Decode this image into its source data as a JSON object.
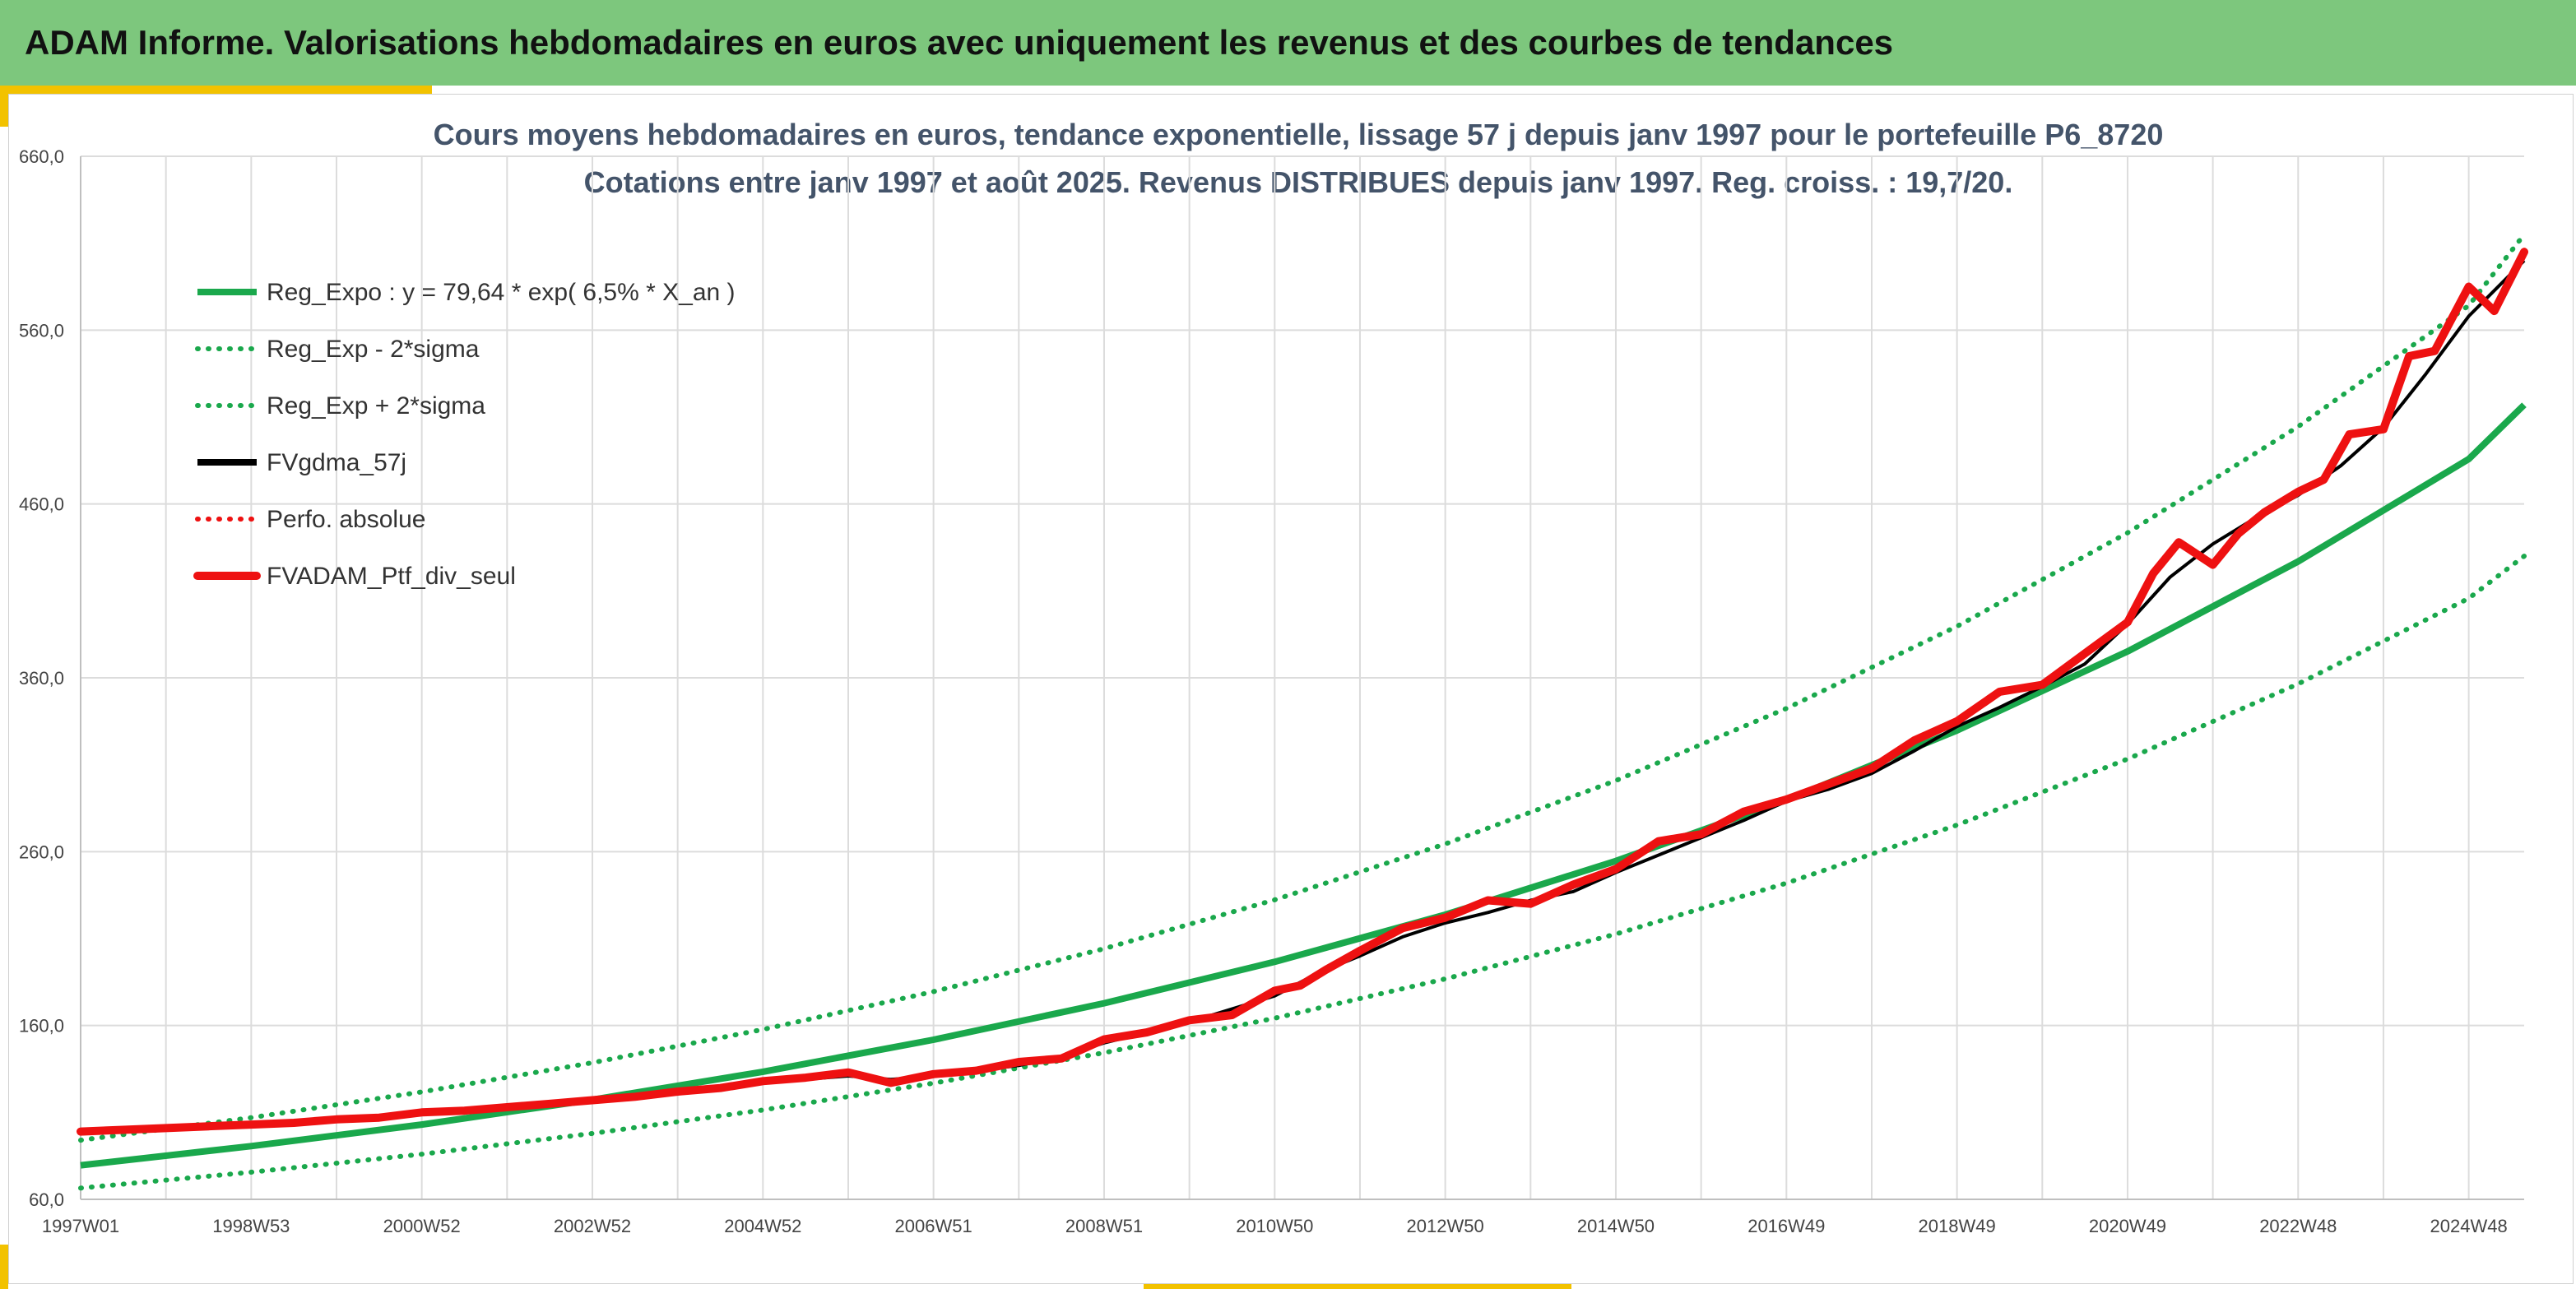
{
  "banner": {
    "title": "ADAM Informe. Valorisations hebdomadaires en euros avec uniquement les revenus et des courbes de tendances"
  },
  "colors": {
    "banner_bg": "#7dc77d",
    "accent": "#f2c200",
    "trend": "#1aa84c",
    "smooth": "#000000",
    "series": "#ee1111"
  },
  "chart_data": {
    "type": "line",
    "title": "Cours moyens hebdomadaires en euros, tendance exponentielle, lissage 57 j depuis janv 1997 pour le portefeuille P6_8720",
    "subtitle": "Cotations entre janv 1997 et août 2025. Revenus DISTRIBUES depuis janv 1997. Reg. croiss. : 19,7/20.",
    "xlabel": "",
    "ylabel": "",
    "x_ticks": [
      "1997W01",
      "1998W53",
      "2000W52",
      "2002W52",
      "2004W52",
      "2006W51",
      "2008W51",
      "2010W50",
      "2012W50",
      "2014W50",
      "2016W49",
      "2018W49",
      "2020W49",
      "2022W48",
      "2024W48"
    ],
    "x_tick_years": [
      1997.0,
      1999.0,
      2001.0,
      2003.0,
      2005.0,
      2007.0,
      2009.0,
      2011.0,
      2013.0,
      2015.0,
      2017.0,
      2019.0,
      2021.0,
      2023.0,
      2025.0
    ],
    "x_range": [
      1997.0,
      2025.65
    ],
    "y_ticks": [
      "60,0",
      "160,0",
      "260,0",
      "360,0",
      "460,0",
      "560,0",
      "660,0"
    ],
    "y_tick_values": [
      60,
      160,
      260,
      360,
      460,
      560,
      660
    ],
    "ylim": [
      60,
      660
    ],
    "grid": true,
    "legend_position": "top-left",
    "legend": [
      {
        "name": "Reg_Expo : y = 79,64 * exp( 6,5% *  X_an )",
        "color": "#1aa84c",
        "style": "solid"
      },
      {
        "name": "Reg_Exp - 2*sigma",
        "color": "#1aa84c",
        "style": "dotted"
      },
      {
        "name": "Reg_Exp + 2*sigma",
        "color": "#1aa84c",
        "style": "dotted"
      },
      {
        "name": "FVgdma_57j",
        "color": "#000000",
        "style": "solid"
      },
      {
        "name": "Perfo. absolue",
        "color": "#ee1111",
        "style": "dotted"
      },
      {
        "name": "FVADAM_Ptf_div_seul",
        "color": "#ee1111",
        "style": "solid-thick"
      }
    ],
    "series": [
      {
        "name": "Reg_Expo : y = 79,64 * exp( 6,5% *  X_an )",
        "x": [
          1997.0,
          1999.0,
          2001.0,
          2003.0,
          2005.0,
          2007.0,
          2009.0,
          2011.0,
          2013.0,
          2015.0,
          2017.0,
          2019.0,
          2021.0,
          2023.0,
          2025.0,
          2025.65
        ],
        "values": [
          79.6,
          90.6,
          103.0,
          117.3,
          133.4,
          151.8,
          172.8,
          196.6,
          223.7,
          254.6,
          289.7,
          329.7,
          375.2,
          426.9,
          485.8,
          517.0
        ]
      },
      {
        "name": "Reg_Exp - 2*sigma",
        "x": [
          1997.0,
          1999.0,
          2001.0,
          2003.0,
          2005.0,
          2007.0,
          2009.0,
          2011.0,
          2013.0,
          2015.0,
          2017.0,
          2019.0,
          2021.0,
          2023.0,
          2025.0,
          2025.65
        ],
        "values": [
          66.5,
          75.6,
          86.0,
          97.9,
          111.4,
          126.8,
          144.3,
          164.2,
          186.8,
          212.6,
          241.9,
          275.3,
          313.3,
          356.5,
          405.7,
          430.0
        ]
      },
      {
        "name": "Reg_Exp + 2*sigma",
        "x": [
          1997.0,
          1999.0,
          2001.0,
          2003.0,
          2005.0,
          2007.0,
          2009.0,
          2011.0,
          2013.0,
          2015.0,
          2017.0,
          2019.0,
          2021.0,
          2023.0,
          2025.0,
          2025.65
        ],
        "values": [
          94.0,
          107.0,
          121.8,
          138.6,
          157.7,
          179.5,
          204.2,
          232.3,
          264.4,
          300.9,
          342.4,
          389.6,
          443.4,
          504.5,
          574.1,
          615.0
        ]
      },
      {
        "name": "FVgdma_57j",
        "x": [
          1997.0,
          1998.0,
          1999.0,
          2000.0,
          2001.0,
          2002.0,
          2003.0,
          2004.0,
          2005.0,
          2006.0,
          2006.5,
          2007.0,
          2008.0,
          2008.5,
          2009.0,
          2010.0,
          2011.0,
          2011.5,
          2012.0,
          2012.5,
          2013.0,
          2013.5,
          2014.0,
          2014.5,
          2015.0,
          2016.0,
          2016.5,
          2017.0,
          2017.5,
          2018.0,
          2018.5,
          2019.0,
          2019.5,
          2020.0,
          2020.5,
          2021.0,
          2021.5,
          2022.0,
          2022.5,
          2023.0,
          2023.5,
          2024.0,
          2024.5,
          2025.0,
          2025.65
        ],
        "values": [
          99.0,
          101.0,
          103.0,
          105.0,
          109.0,
          112.0,
          116.0,
          121.0,
          127.0,
          131.0,
          129.0,
          131.0,
          137.0,
          142.0,
          150.0,
          162.0,
          177.0,
          190.0,
          200.0,
          211.0,
          219.0,
          225.0,
          232.0,
          237.0,
          248.0,
          268.0,
          278.0,
          289.0,
          296.0,
          305.0,
          318.0,
          332.0,
          343.0,
          355.0,
          368.0,
          391.0,
          418.0,
          437.0,
          452.0,
          465.0,
          482.0,
          504.0,
          535.0,
          568.0,
          600.0
        ]
      },
      {
        "name": "FVADAM_Ptf_div_seul",
        "x": [
          1997.0,
          1997.5,
          1998.0,
          1998.5,
          1999.0,
          1999.5,
          2000.0,
          2000.5,
          2001.0,
          2001.5,
          2002.0,
          2002.5,
          2003.0,
          2003.5,
          2004.0,
          2004.5,
          2005.0,
          2005.5,
          2006.0,
          2006.5,
          2007.0,
          2007.5,
          2008.0,
          2008.5,
          2009.0,
          2009.5,
          2010.0,
          2010.5,
          2011.0,
          2011.3,
          2011.6,
          2012.0,
          2012.5,
          2013.0,
          2013.5,
          2014.0,
          2014.5,
          2015.0,
          2015.5,
          2016.0,
          2016.5,
          2017.0,
          2017.5,
          2018.0,
          2018.5,
          2019.0,
          2019.5,
          2020.0,
          2020.5,
          2021.0,
          2021.3,
          2021.6,
          2022.0,
          2022.3,
          2022.6,
          2023.0,
          2023.3,
          2023.6,
          2024.0,
          2024.3,
          2024.6,
          2025.0,
          2025.3,
          2025.65
        ],
        "values": [
          99.0,
          100.0,
          101.0,
          102.0,
          103.0,
          104.0,
          106.0,
          107.0,
          110.0,
          111.0,
          113.0,
          115.0,
          117.0,
          119.0,
          122.0,
          124.0,
          128.0,
          130.0,
          133.0,
          127.0,
          132.0,
          134.0,
          139.0,
          141.0,
          152.0,
          156.0,
          163.0,
          166.0,
          180.0,
          183.0,
          192.0,
          203.0,
          216.0,
          222.0,
          232.0,
          230.0,
          241.0,
          250.0,
          266.0,
          270.0,
          283.0,
          290.0,
          299.0,
          308.0,
          324.0,
          335.0,
          352.0,
          356.0,
          374.0,
          392.0,
          420.0,
          438.0,
          425.0,
          443.0,
          455.0,
          467.0,
          474.0,
          500.0,
          503.0,
          545.0,
          548.0,
          585.0,
          571.0,
          605.0
        ]
      }
    ]
  }
}
